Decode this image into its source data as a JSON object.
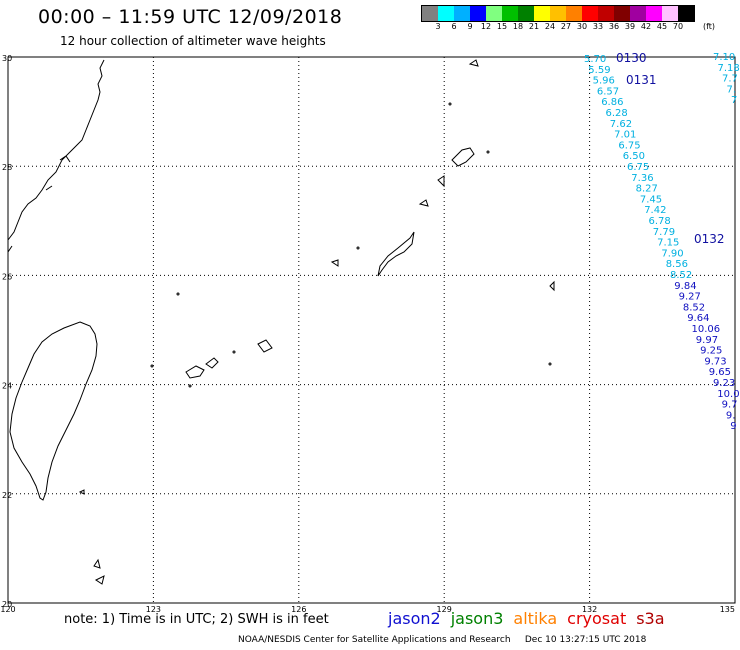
{
  "header": {
    "title": "00:00 – 11:59 UTC 12/09/2018",
    "subtitle": "12 hour collection of altimeter wave heights"
  },
  "scale": {
    "unit": "(ft)",
    "labels": [
      "3",
      "6",
      "9",
      "12",
      "15",
      "18",
      "21",
      "24",
      "27",
      "30",
      "33",
      "36",
      "39",
      "42",
      "45",
      "70"
    ],
    "colors": [
      "#808080",
      "#00ffff",
      "#00b0ff",
      "#0000ff",
      "#80ff80",
      "#00c000",
      "#008000",
      "#ffff00",
      "#ffc000",
      "#ff8000",
      "#ff0000",
      "#c00000",
      "#800000",
      "#a000a0",
      "#ff00ff",
      "#ffc0ff",
      "#000000"
    ]
  },
  "map": {
    "lat_ticks": [
      "30",
      "28",
      "26",
      "24",
      "22",
      "20"
    ],
    "lon_ticks": [
      "120",
      "123",
      "126",
      "129",
      "132",
      "135"
    ]
  },
  "passes": [
    {
      "time_label": "0130"
    },
    {
      "time_label": "0131"
    },
    {
      "time_label": "0132"
    }
  ],
  "track_main": [
    {
      "v": "5.70",
      "c": "#00b0e0"
    },
    {
      "v": "5.59",
      "c": "#00b0e0"
    },
    {
      "v": "5.96",
      "c": "#00b0e0"
    },
    {
      "v": "6.57",
      "c": "#00b0e0"
    },
    {
      "v": "6.86",
      "c": "#00b0e0"
    },
    {
      "v": "6.28",
      "c": "#00b0e0"
    },
    {
      "v": "7.62",
      "c": "#00b0e0"
    },
    {
      "v": "7.01",
      "c": "#00b0e0"
    },
    {
      "v": "6.75",
      "c": "#00b0e0"
    },
    {
      "v": "6.50",
      "c": "#00b0e0"
    },
    {
      "v": "6.75",
      "c": "#00b0e0"
    },
    {
      "v": "7.36",
      "c": "#00b0e0"
    },
    {
      "v": "8.27",
      "c": "#00b0e0"
    },
    {
      "v": "7.45",
      "c": "#00b0e0"
    },
    {
      "v": "7.42",
      "c": "#00b0e0"
    },
    {
      "v": "6.78",
      "c": "#00b0e0"
    },
    {
      "v": "7.79",
      "c": "#00b0e0"
    },
    {
      "v": "7.15",
      "c": "#00b0e0"
    },
    {
      "v": "7.90",
      "c": "#00b0e0"
    },
    {
      "v": "8.56",
      "c": "#00b0e0"
    },
    {
      "v": "8.52",
      "c": "#00b0e0"
    },
    {
      "v": "9.84",
      "c": "#1010c0"
    },
    {
      "v": "9.27",
      "c": "#1010c0"
    },
    {
      "v": "8.52",
      "c": "#1010c0"
    },
    {
      "v": "9.64",
      "c": "#1010c0"
    },
    {
      "v": "10.06",
      "c": "#1010c0"
    },
    {
      "v": "9.97",
      "c": "#1010c0"
    },
    {
      "v": "9.25",
      "c": "#1010c0"
    },
    {
      "v": "9.73",
      "c": "#1010c0"
    },
    {
      "v": "9.65",
      "c": "#1010c0"
    },
    {
      "v": "9.23",
      "c": "#1010c0"
    },
    {
      "v": "10.0",
      "c": "#1010c0"
    },
    {
      "v": "9.7",
      "c": "#1010c0"
    },
    {
      "v": "9.",
      "c": "#1010c0"
    },
    {
      "v": "9",
      "c": "#1010c0"
    }
  ],
  "track_right": [
    {
      "v": "7.10",
      "c": "#00b0e0"
    },
    {
      "v": "7.18",
      "c": "#00b0e0"
    },
    {
      "v": "7.7",
      "c": "#00b0e0"
    },
    {
      "v": "7.",
      "c": "#00b0e0"
    },
    {
      "v": "7",
      "c": "#00b0e0"
    }
  ],
  "footer": {
    "note": "note: 1) Time is in UTC; 2) SWH is in feet",
    "missions": [
      {
        "name": "jason2",
        "color": "#1010d0"
      },
      {
        "name": "jason3",
        "color": "#008000"
      },
      {
        "name": "altika",
        "color": "#ff8000"
      },
      {
        "name": "cryosat",
        "color": "#e00000"
      },
      {
        "name": "s3a",
        "color": "#b00000"
      }
    ],
    "credit": "NOAA/NESDIS Center for Satellite Applications and Research     Dec 10 13:27:15 UTC 2018"
  }
}
